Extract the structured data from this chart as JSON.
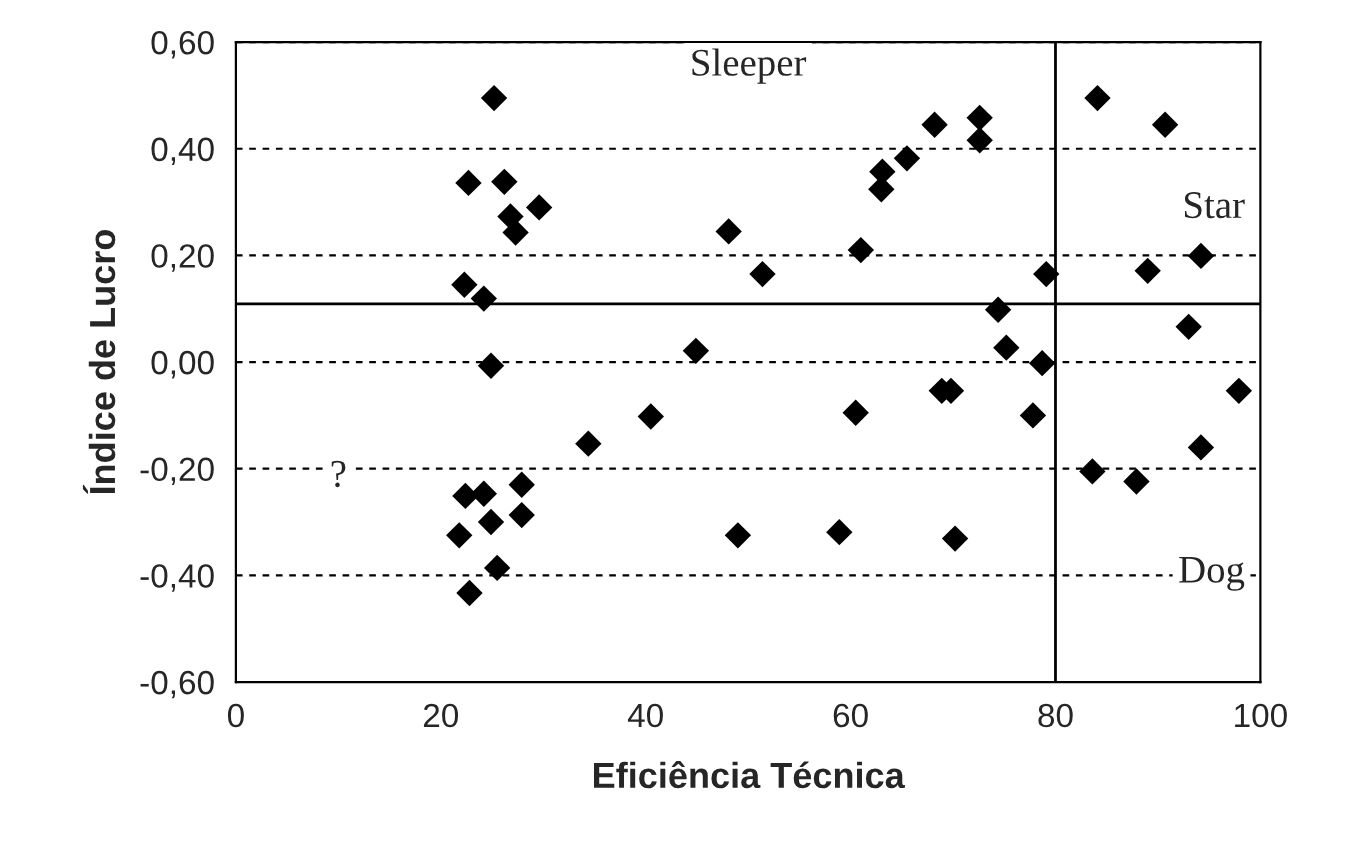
{
  "chart_data": {
    "type": "scatter",
    "xlabel": "Eficiência Técnica",
    "ylabel": "Índice de Lucro",
    "xlim": [
      0,
      100
    ],
    "xticks": [
      0,
      20,
      40,
      60,
      80,
      100
    ],
    "ylim": [
      -0.6,
      0.6
    ],
    "yticks": [
      {
        "value": -0.6,
        "label": "-0,60"
      },
      {
        "value": -0.4,
        "label": "-0,40"
      },
      {
        "value": -0.2,
        "label": "-0,20"
      },
      {
        "value": 0,
        "label": "0,00"
      },
      {
        "value": 0.2,
        "label": "0,20"
      },
      {
        "value": 0.4,
        "label": "0,40"
      },
      {
        "value": 0.6,
        "label": "0,60"
      }
    ],
    "grid": "y",
    "marker": "diamond",
    "x": [
      25.2,
      22.7,
      26.2,
      29.6,
      26.8,
      27.3,
      22.3,
      24.2,
      24.9,
      44.9,
      40.5,
      34.4,
      22.4,
      24.2,
      27.9,
      27.9,
      24.9,
      21.8,
      25.5,
      22.8,
      48.1,
      49.0,
      51.4,
      58.9,
      60.5,
      61.0,
      63.1,
      63.0,
      65.5,
      68.2,
      68.9,
      69.8,
      70.2,
      72.6,
      72.6,
      74.4,
      75.2,
      78.7,
      79.1,
      77.8,
      84.1,
      90.7,
      83.6,
      87.9,
      89.0,
      94.2,
      93.0,
      94.2,
      97.9
    ],
    "series": [
      {
        "color": "#000000",
        "values": [
          0.495,
          0.336,
          0.338,
          0.29,
          0.273,
          0.243,
          0.145,
          0.119,
          -0.007,
          0.021,
          -0.102,
          -0.153,
          -0.251,
          -0.247,
          -0.23,
          -0.287,
          -0.3,
          -0.325,
          -0.386,
          -0.433,
          0.245,
          -0.325,
          0.165,
          -0.319,
          -0.095,
          0.21,
          0.357,
          0.324,
          0.382,
          0.445,
          -0.054,
          -0.054,
          -0.331,
          0.458,
          0.416,
          0.098,
          0.027,
          -0.002,
          0.165,
          -0.1,
          0.495,
          0.445,
          -0.205,
          -0.224,
          0.171,
          0.199,
          0.066,
          -0.16,
          -0.054
        ]
      }
    ],
    "ref_lines": [
      {
        "axis": "y",
        "value": 0.109,
        "color": "#000000"
      },
      {
        "axis": "x",
        "value": 80,
        "color": "#000000"
      }
    ],
    "annotations": [
      "Sleeper",
      "Star",
      "Dog",
      "?"
    ]
  }
}
